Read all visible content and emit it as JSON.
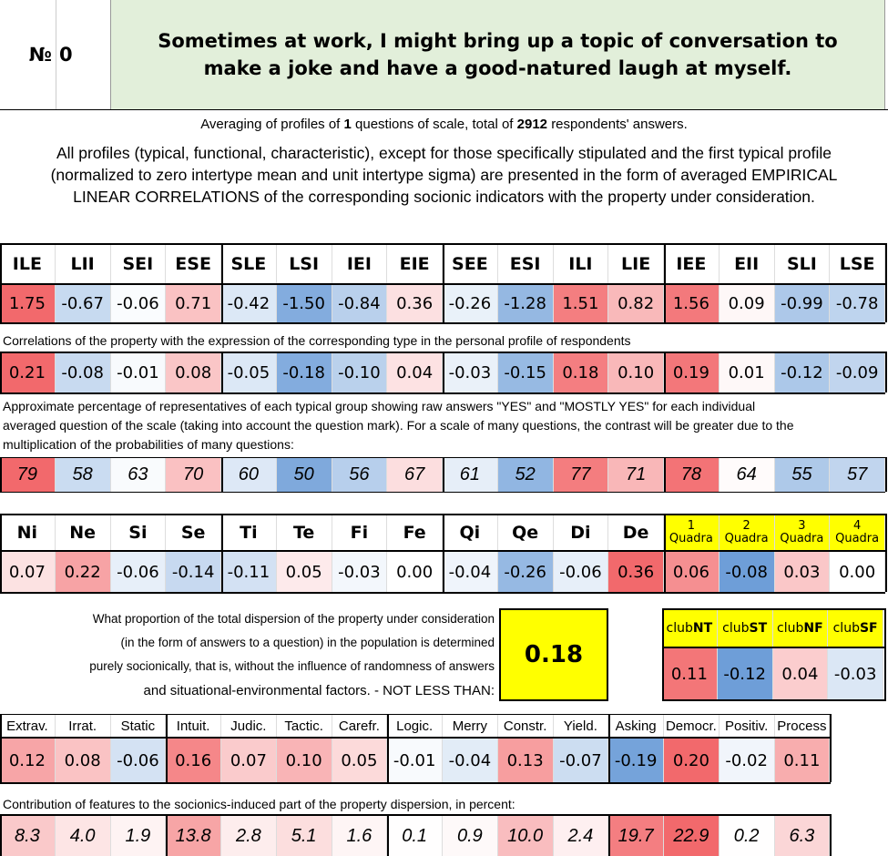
{
  "header": {
    "no_label": "№",
    "no_value": "0",
    "question": "Sometimes at work, I might bring up a topic of conversation to make a joke and have a good-natured laugh at myself."
  },
  "averaging": {
    "part1": "Averaging of profiles of",
    "questions": "1",
    "part2": "questions of scale, total of",
    "respondents": "2912",
    "part3": "respondents' answers."
  },
  "description": [
    "All profiles (typical, functional, characteristic), except for those specifically stipulated and the first typical profile",
    "(normalized to zero intertype mean and unit intertype sigma) are presented in the form of averaged EMPIRICAL",
    "LINEAR CORRELATIONS of the corresponding socionic indicators with the property under consideration."
  ],
  "types": {
    "labels": [
      "ILE",
      "LII",
      "SEI",
      "ESE",
      "SLE",
      "LSI",
      "IEI",
      "EIE",
      "SEE",
      "ESI",
      "ILI",
      "LIE",
      "IEE",
      "EII",
      "SLI",
      "LSE"
    ],
    "values": [
      "1.75",
      "-0.67",
      "-0.06",
      "0.71",
      "-0.42",
      "-1.50",
      "-0.84",
      "0.36",
      "-0.26",
      "-1.28",
      "1.51",
      "0.82",
      "1.56",
      "0.09",
      "-0.99",
      "-0.78"
    ],
    "correlations_caption": "Correlations of the property with the expression of the corresponding type in the personal profile of respondents",
    "correlations": [
      "0.21",
      "-0.08",
      "-0.01",
      "0.08",
      "-0.05",
      "-0.18",
      "-0.10",
      "0.04",
      "-0.03",
      "-0.15",
      "0.18",
      "0.10",
      "0.19",
      "0.01",
      "-0.12",
      "-0.09"
    ],
    "percent_caption": [
      "Approximate percentage of representatives of each typical group showing raw answers \"YES\" and \"MOSTLY YES\" for each individual",
      "averaged question of the scale (taking into account the question mark). For a scale of many questions, the contrast will be greater due to the",
      "multiplication of the probabilities of many questions:"
    ],
    "percentages": [
      "79",
      "58",
      "63",
      "70",
      "60",
      "50",
      "56",
      "67",
      "61",
      "52",
      "77",
      "71",
      "78",
      "64",
      "55",
      "57"
    ]
  },
  "functions": {
    "labels": [
      "Ni",
      "Ne",
      "Si",
      "Se",
      "Ti",
      "Te",
      "Fi",
      "Fe",
      "Qi",
      "Qe",
      "Di",
      "De"
    ],
    "values": [
      "0.07",
      "0.22",
      "-0.06",
      "-0.14",
      "-0.11",
      "0.05",
      "-0.03",
      "0.00",
      "-0.04",
      "-0.26",
      "-0.06",
      "0.36"
    ],
    "quadras": [
      {
        "number": "1",
        "label": "Quadra"
      },
      {
        "number": "2",
        "label": "Quadra"
      },
      {
        "number": "3",
        "label": "Quadra"
      },
      {
        "number": "4",
        "label": "Quadra"
      }
    ],
    "quadra_values": [
      "0.06",
      "-0.08",
      "0.03",
      "0.00"
    ]
  },
  "dispersion": {
    "lines": [
      "What proportion of the total dispersion of the property under consideration",
      "(in the form of answers to a question) in the population is determined",
      "purely socionically, that is, without the influence of randomness of answers",
      "and situational-environmental factors. - NOT LESS THAN:"
    ],
    "value": "0.18"
  },
  "clubs": {
    "prefix": [
      "club",
      "club",
      "club",
      "club"
    ],
    "labels": [
      "NT",
      "ST",
      "NF",
      "SF"
    ],
    "values": [
      "0.11",
      "-0.12",
      "0.04",
      "-0.03"
    ]
  },
  "traits": {
    "labels": [
      "Extrav.",
      "Irrat.",
      "Static",
      "Intuit.",
      "Judic.",
      "Tactic.",
      "Carefr.",
      "Logic.",
      "Merry",
      "Constr.",
      "Yield.",
      "Asking",
      "Democr.",
      "Positiv.",
      "Process"
    ],
    "values": [
      "0.12",
      "0.08",
      "-0.06",
      "0.16",
      "0.07",
      "0.10",
      "0.05",
      "-0.01",
      "-0.04",
      "0.13",
      "-0.07",
      "-0.19",
      "0.20",
      "-0.02",
      "0.11"
    ],
    "contribution_caption": "Contribution of features to the socionics-induced part of the property dispersion, in percent:",
    "contributions": [
      "8.3",
      "4.0",
      "1.9",
      "13.8",
      "2.8",
      "5.1",
      "1.6",
      "0.1",
      "0.9",
      "10.0",
      "2.4",
      "19.7",
      "22.9",
      "0.2",
      "6.3"
    ]
  }
}
